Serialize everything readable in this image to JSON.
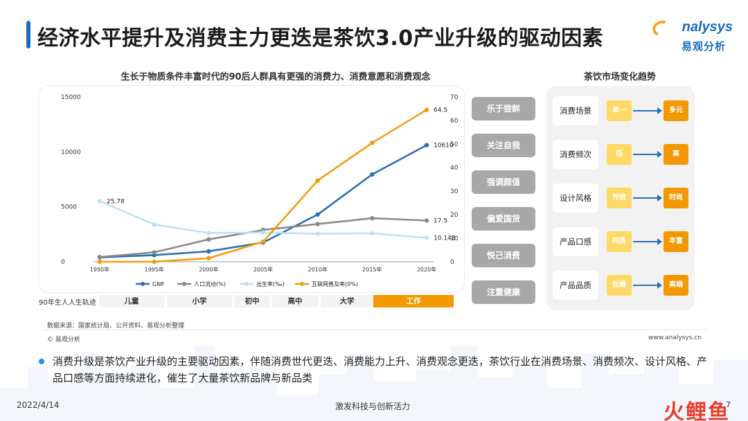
{
  "title": "经济水平提升及消费主力更迭是茶饮3.0产业升级的驱动因素",
  "logo": {
    "en": "nalysys",
    "cn": "易观分析"
  },
  "chart_title": "生长于物质条件丰富时代的90后人群具有更强的消费力、消费意愿和消费观念",
  "chart_data": {
    "type": "line",
    "x": [
      "1990年",
      "1995年",
      "2000年",
      "2005年",
      "2010年",
      "2015年",
      "2020年"
    ],
    "y_left_ticks": [
      "0",
      "5000",
      "10000",
      "15000"
    ],
    "y_left_range": [
      0,
      15000
    ],
    "y_right_ticks": [
      "0",
      "10",
      "20",
      "30",
      "40",
      "50",
      "60",
      "70"
    ],
    "y_right_range": [
      0,
      70
    ],
    "series": [
      {
        "name": "GNP",
        "axis": "left",
        "color": "#2a6fb5",
        "values": [
          400,
          600,
          950,
          1750,
          4300,
          7950,
          10610
        ],
        "end_label": "10610"
      },
      {
        "name": "人口流动(%)",
        "axis": "right",
        "color": "#8a8a8a",
        "values": [
          2.0,
          4.0,
          9.5,
          13.5,
          16.0,
          18.5,
          17.5
        ],
        "end_label": "17.5"
      },
      {
        "name": "出生率(‰)",
        "axis": "right",
        "color": "#bde0f7",
        "values": [
          25.78,
          15.8,
          12.2,
          12.4,
          11.9,
          12.1,
          10.148
        ],
        "start_label": "25.78",
        "end_label": "10.148"
      },
      {
        "name": "互联网普及率(0%)",
        "axis": "right",
        "color": "#f39c12",
        "values": [
          0,
          0,
          1.5,
          8.5,
          34.5,
          50.5,
          64.5
        ],
        "end_label": "64.5"
      }
    ]
  },
  "timeline": {
    "label": "90年生人人生轨迹",
    "stages": [
      "儿童",
      "小学",
      "初中",
      "高中",
      "大学",
      "工作"
    ],
    "active": "工作"
  },
  "tags": [
    "乐于尝鲜",
    "关注自我",
    "强调颜值",
    "偏爱国货",
    "悦己消费",
    "注重健康"
  ],
  "trends": {
    "title": "茶饮市场变化趋势",
    "rows": [
      {
        "name": "消费场景",
        "from": "单一",
        "to": "多元"
      },
      {
        "name": "消费频次",
        "from": "低",
        "to": "高"
      },
      {
        "name": "设计风格",
        "from": "传统",
        "to": "时尚"
      },
      {
        "name": "产品口感",
        "from": "同质",
        "to": "丰富"
      },
      {
        "name": "产品品质",
        "from": "低端",
        "to": "高端"
      }
    ]
  },
  "source": "数据来源：国家统计局、公开资料、易观分析整理",
  "copyright": "© 易观分析",
  "website": "www.analysys.cn",
  "body": "消费升级是茶饮产业升级的主要驱动因素，伴随消费世代更迭、消费能力上升、消费观念更迭，茶饮行业在消费场景、消费频次、设计风格、产品口感等方面持续进化，催生了大量茶饮新品牌与新品类",
  "date": "2022/4/14",
  "footer_center": "激发科技与创新活力",
  "page_number": "7",
  "brand": "火鲤鱼"
}
